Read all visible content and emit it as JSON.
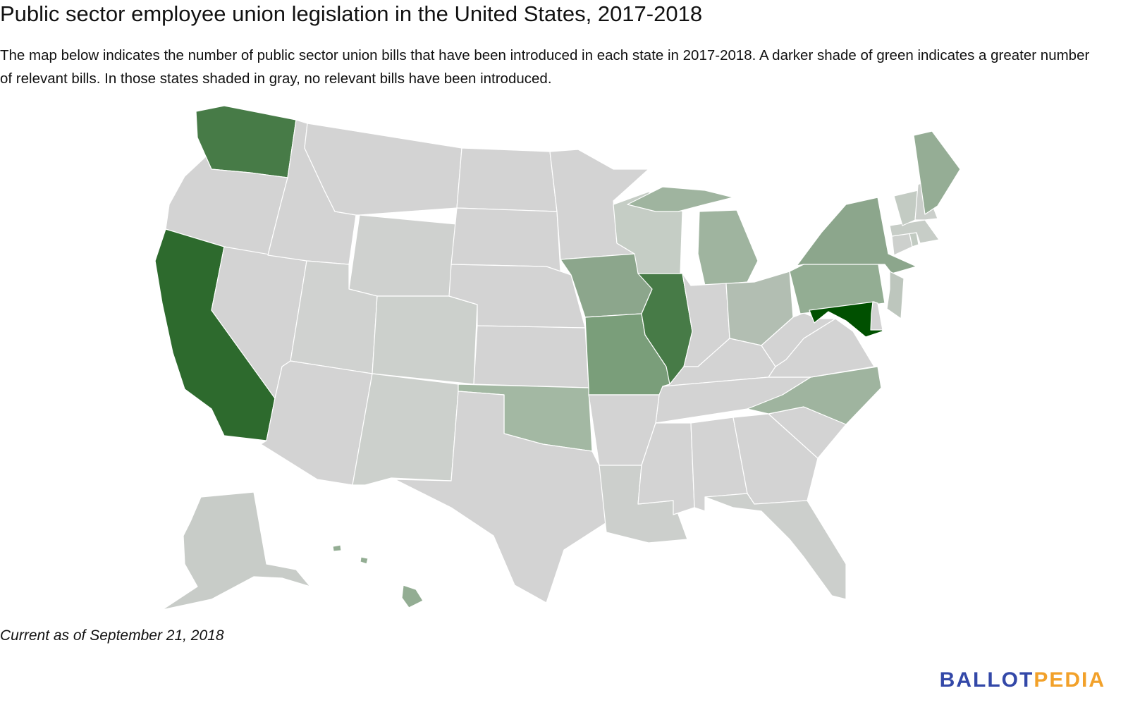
{
  "title": "Public sector employee union legislation in the United States, 2017-2018",
  "description": "The map below indicates the number of public sector union bills that have been introduced in each state in 2017-2018. A darker shade of green indicates a greater number of relevant bills. In those states shaded in gray, no relevant bills have been introduced.",
  "footnote": "Current as of September 21, 2018",
  "logo": {
    "part1": "BALLOT",
    "part2": "PEDIA"
  },
  "colors": {
    "no_bills_gray": "#d3d3d3",
    "brand_blue": "#3348a8",
    "brand_orange": "#f2a12a"
  },
  "state_fills": {
    "WA": "#477b47",
    "OR": "#d3d3d3",
    "CA": "#2d6a2d",
    "NV": "#d3d3d3",
    "ID": "#d3d3d3",
    "MT": "#d3d3d3",
    "WY": "#cfd1cf",
    "UT": "#d0d2d0",
    "AZ": "#d3d3d3",
    "CO": "#ccd0cc",
    "NM": "#ccd0cc",
    "ND": "#d3d3d3",
    "SD": "#d3d3d3",
    "NE": "#d3d3d3",
    "KS": "#d3d3d3",
    "OK": "#a3b8a3",
    "TX": "#d3d3d3",
    "MN": "#d3d3d3",
    "IA": "#8ca68c",
    "MO": "#7a9e7a",
    "WI": "#c5cdc5",
    "IL": "#477b47",
    "MI": "#9fb49f",
    "IN": "#d3d3d3",
    "OH": "#b2beb2",
    "KY": "#d3d3d3",
    "TN": "#d3d3d3",
    "AR": "#d3d3d3",
    "LA": "#cccfcc",
    "MS": "#d3d3d3",
    "AL": "#d3d3d3",
    "GA": "#d3d3d3",
    "FL": "#cccfcc",
    "SC": "#d3d3d3",
    "NC": "#9fb49f",
    "VA": "#d3d3d3",
    "WV": "#d3d3d3",
    "PA": "#93ad93",
    "NY": "#8ca68c",
    "MD": "#005000",
    "DE": "#d3d3d3",
    "NJ": "#bdc6bd",
    "CT": "#cdd0cd",
    "RI": "#c2cbc2",
    "MA": "#c7cdc7",
    "VT": "#c3cbc3",
    "NH": "#cbcfcb",
    "ME": "#95ad95",
    "AK": "#c8ccc8",
    "HI": "#93ad93"
  }
}
